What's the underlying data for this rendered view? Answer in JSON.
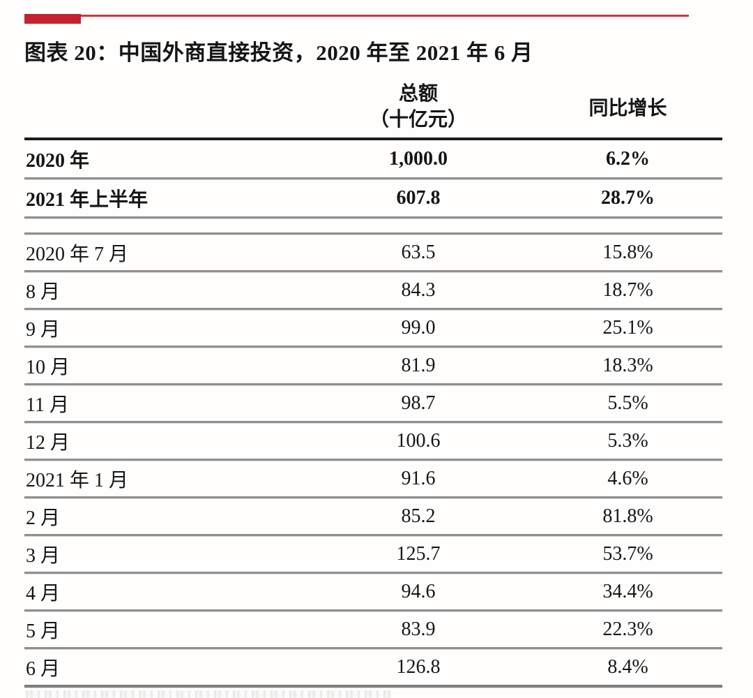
{
  "title": "图表 20：中国外商直接投资，2020 年至 2021 年 6 月",
  "colors": {
    "accent_red": "#c5222d",
    "header_rule": "#1c1c1c",
    "row_rule": "#8f8f8f",
    "text": "#151515"
  },
  "table": {
    "header": {
      "amount_line1": "总额",
      "amount_line2": "（十亿元）",
      "yoy": "同比增长"
    },
    "summary_rows": [
      {
        "label": "2020 年",
        "amount": "1,000.0",
        "yoy": "6.2%"
      },
      {
        "label": "2021 年上半年",
        "amount": "607.8",
        "yoy": "28.7%"
      }
    ],
    "monthly_rows": [
      {
        "label": "2020 年 7 月",
        "amount": "63.5",
        "yoy": "15.8%"
      },
      {
        "label": "8 月",
        "amount": "84.3",
        "yoy": "18.7%"
      },
      {
        "label": "9 月",
        "amount": "99.0",
        "yoy": "25.1%"
      },
      {
        "label": "10 月",
        "amount": "81.9",
        "yoy": "18.3%"
      },
      {
        "label": "11 月",
        "amount": "98.7",
        "yoy": "5.5%"
      },
      {
        "label": "12 月",
        "amount": "100.6",
        "yoy": "5.3%"
      },
      {
        "label": "2021 年 1 月",
        "amount": "91.6",
        "yoy": "4.6%"
      },
      {
        "label": "2 月",
        "amount": "85.2",
        "yoy": "81.8%"
      },
      {
        "label": "3 月",
        "amount": "125.7",
        "yoy": "53.7%"
      },
      {
        "label": "4 月",
        "amount": "94.6",
        "yoy": "34.4%"
      },
      {
        "label": "5 月",
        "amount": "83.9",
        "yoy": "22.3%"
      },
      {
        "label": "6 月",
        "amount": "126.8",
        "yoy": "8.4%"
      }
    ]
  },
  "chart_data": {
    "type": "table",
    "title": "图表 20：中国外商直接投资，2020 年至 2021 年 6 月",
    "columns": [
      "",
      "总额（十亿元）",
      "同比增长"
    ],
    "rows": [
      [
        "2020 年",
        "1,000.0",
        "6.2%"
      ],
      [
        "2021 年上半年",
        "607.8",
        "28.7%"
      ],
      [
        "2020 年 7 月",
        "63.5",
        "15.8%"
      ],
      [
        "8 月",
        "84.3",
        "18.7%"
      ],
      [
        "9 月",
        "99.0",
        "25.1%"
      ],
      [
        "10 月",
        "81.9",
        "18.3%"
      ],
      [
        "11 月",
        "98.7",
        "5.5%"
      ],
      [
        "12 月",
        "100.6",
        "5.3%"
      ],
      [
        "2021 年 1 月",
        "91.6",
        "4.6%"
      ],
      [
        "2 月",
        "85.2",
        "81.8%"
      ],
      [
        "3 月",
        "125.7",
        "53.7%"
      ],
      [
        "4 月",
        "94.6",
        "34.4%"
      ],
      [
        "5 月",
        "83.9",
        "22.3%"
      ],
      [
        "6 月",
        "126.8",
        "8.4%"
      ]
    ]
  }
}
